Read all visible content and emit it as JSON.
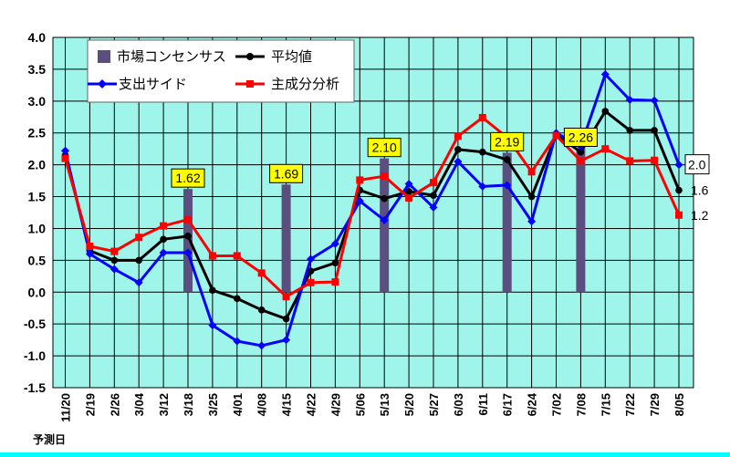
{
  "chart_data": {
    "type": "line",
    "x_axis_title": "予測日",
    "categories": [
      "11/20",
      "2/19",
      "2/26",
      "3/04",
      "3/12",
      "3/18",
      "3/25",
      "4/01",
      "4/08",
      "4/15",
      "4/22",
      "4/29",
      "5/06",
      "5/13",
      "5/20",
      "5/27",
      "6/03",
      "6/11",
      "6/17",
      "6/24",
      "7/02",
      "7/08",
      "7/15",
      "7/22",
      "7/29",
      "8/05"
    ],
    "ylim": [
      -1.5,
      4.0
    ],
    "yticks": [
      "4.0",
      "3.5",
      "3.0",
      "2.5",
      "2.0",
      "1.5",
      "1.0",
      "0.5",
      "0.0",
      "-0.5",
      "-1.0",
      "-1.5"
    ],
    "grid": true,
    "legend_position": "top-left",
    "bars": {
      "name": "市場コンセンサス",
      "color": "#5c4e7e",
      "points": [
        {
          "category": "3/18",
          "value": 1.62,
          "label": "1.62"
        },
        {
          "category": "4/15",
          "value": 1.69,
          "label": "1.69"
        },
        {
          "category": "5/13",
          "value": 2.1,
          "label": "2.10"
        },
        {
          "category": "6/17",
          "value": 2.19,
          "label": "2.19"
        },
        {
          "category": "7/08",
          "value": 2.26,
          "label": "2.26"
        }
      ]
    },
    "series": [
      {
        "name": "平均値",
        "color": "#000000",
        "marker": "circle",
        "values": [
          2.15,
          0.65,
          0.5,
          0.5,
          0.83,
          0.88,
          0.03,
          -0.1,
          -0.28,
          -0.42,
          0.33,
          0.46,
          1.6,
          1.47,
          1.58,
          1.52,
          2.24,
          2.2,
          2.08,
          1.5,
          2.47,
          2.2,
          2.84,
          2.54,
          2.54,
          1.6
        ],
        "end_label": "1.6"
      },
      {
        "name": "支出サイド",
        "color": "#0000ff",
        "marker": "diamond",
        "values": [
          2.22,
          0.6,
          0.36,
          0.15,
          0.62,
          0.62,
          -0.52,
          -0.77,
          -0.84,
          -0.75,
          0.52,
          0.76,
          1.43,
          1.13,
          1.7,
          1.33,
          2.05,
          1.66,
          1.68,
          1.11,
          2.5,
          2.29,
          3.42,
          3.02,
          3.01,
          2.0
        ],
        "end_label": "2.0"
      },
      {
        "name": "主成分分析",
        "color": "#ff0000",
        "marker": "square",
        "values": [
          2.1,
          0.72,
          0.64,
          0.86,
          1.04,
          1.14,
          0.57,
          0.57,
          0.3,
          -0.07,
          0.15,
          0.16,
          1.76,
          1.82,
          1.48,
          1.72,
          2.45,
          2.74,
          2.43,
          1.89,
          2.46,
          2.06,
          2.25,
          2.06,
          2.07,
          1.21
        ],
        "end_label": "1.2"
      }
    ]
  }
}
